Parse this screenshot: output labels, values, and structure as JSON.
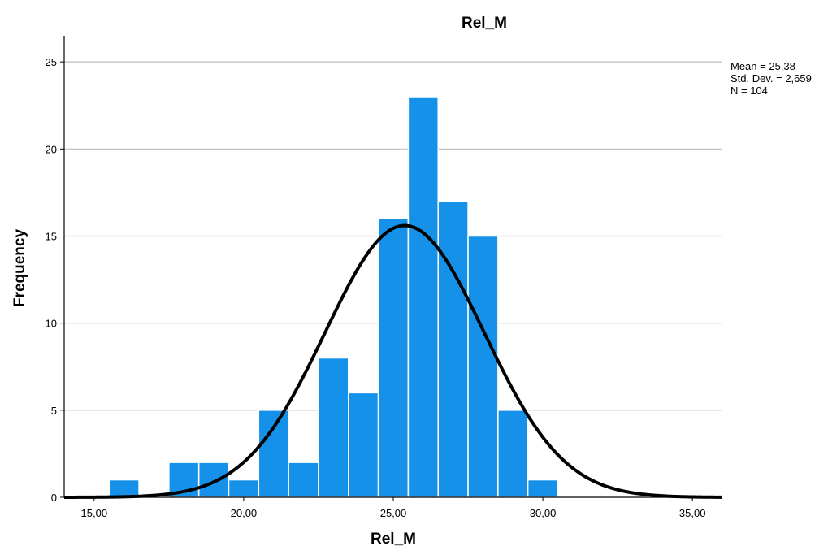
{
  "chart_data": {
    "type": "bar",
    "subtype": "histogram",
    "title": "Rel_M",
    "xlabel": "Rel_M",
    "ylabel": "Frequency",
    "xlim": [
      14.0,
      36.0
    ],
    "ylim": [
      0,
      26.5
    ],
    "x_ticks": [
      15,
      20,
      25,
      30,
      35
    ],
    "x_tick_labels": [
      "15,00",
      "20,00",
      "25,00",
      "30,00",
      "35,00"
    ],
    "y_ticks": [
      0,
      5,
      10,
      15,
      20,
      25
    ],
    "y_tick_labels": [
      "0",
      "5",
      "10",
      "15",
      "20",
      "25"
    ],
    "bin_width": 1.0,
    "bins": [
      {
        "start": 15.5,
        "count": 1
      },
      {
        "start": 17.5,
        "count": 2
      },
      {
        "start": 18.5,
        "count": 2
      },
      {
        "start": 19.5,
        "count": 1
      },
      {
        "start": 20.5,
        "count": 5
      },
      {
        "start": 21.5,
        "count": 2
      },
      {
        "start": 22.5,
        "count": 8
      },
      {
        "start": 23.5,
        "count": 6
      },
      {
        "start": 24.5,
        "count": 16
      },
      {
        "start": 25.5,
        "count": 23
      },
      {
        "start": 26.5,
        "count": 17
      },
      {
        "start": 27.5,
        "count": 15
      },
      {
        "start": 28.5,
        "count": 5
      },
      {
        "start": 29.5,
        "count": 1
      }
    ],
    "normal_curve": {
      "mean": 25.38,
      "std": 2.659,
      "n": 104
    },
    "grid": "horizontal",
    "bar_color": "#1591ea",
    "curve_color": "#000000"
  },
  "stats": {
    "mean_line": "Mean = 25,38",
    "std_line": "Std. Dev. = 2,659",
    "n_line": "N = 104"
  }
}
